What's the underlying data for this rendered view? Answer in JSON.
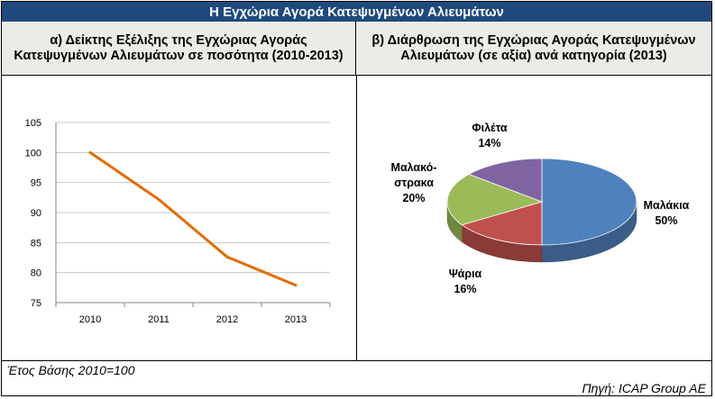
{
  "header": {
    "title": "Η Εγχώρια Αγορά Κατεψυγμένων Αλιευμάτων"
  },
  "left_panel": {
    "title": "α) Δείκτης Εξέλιξης της Εγχώριας Αγοράς Κατεψυγμένων Αλιευμάτων σε ποσότητα  (2010-2013)"
  },
  "right_panel": {
    "title": "β) Διάρθρωση της Εγχώριας Αγοράς Κατεψυγμένων Αλιευμάτων (σε αξία) ανά κατηγορία (2013)"
  },
  "footer": {
    "note": "Έτος Βάσης 2010=100",
    "source": "Πηγή: ICAP Group AE"
  },
  "chart_data": [
    {
      "type": "line",
      "title": "α) Δείκτης Εξέλιξης της Εγχώριας Αγοράς Κατεψυγμένων Αλιευμάτων σε ποσότητα  (2010-2013)",
      "categories": [
        "2010",
        "2011",
        "2012",
        "2013"
      ],
      "series": [
        {
          "values": [
            100,
            92.2,
            82.6,
            77.9
          ]
        }
      ],
      "ylim": [
        75,
        105
      ],
      "yticks": [
        75,
        80,
        85,
        90,
        95,
        100,
        105
      ],
      "grid": true,
      "line_color": "#e36c09"
    },
    {
      "type": "pie",
      "title": "β) Διάρθρωση της Εγχώριας Αγοράς Κατεψυγμένων Αλιευμάτων (σε αξία) ανά κατηγορία (2013)",
      "slices": [
        {
          "label": "Μαλάκια",
          "value": 50,
          "value_label": "50%",
          "color": "#4f81bd"
        },
        {
          "label": "Ψάρια",
          "value": 16,
          "value_label": "16%",
          "color": "#c0504d"
        },
        {
          "label_lines": [
            "Μαλακό-",
            "στρακα"
          ],
          "value": 20,
          "value_label": "20%",
          "color": "#9bbb59"
        },
        {
          "label": "Φιλέτα",
          "value": 14,
          "value_label": "14%",
          "color": "#8064a2"
        }
      ]
    }
  ]
}
